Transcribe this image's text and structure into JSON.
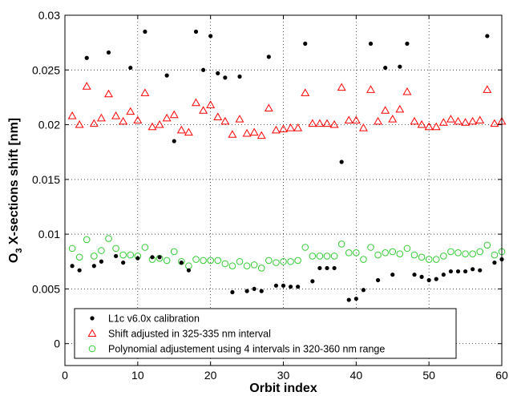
{
  "chart_data": {
    "type": "scatter",
    "xlabel": "Orbit index",
    "ylabel": "O3 X-sections shift [nm]",
    "ylabel_main": "O",
    "ylabel_sub": "3",
    "ylabel_rest": " X-sections shift [nm]",
    "xlim": [
      0,
      60
    ],
    "ylim": [
      -0.002,
      0.03
    ],
    "x_ticks": [
      0,
      10,
      20,
      30,
      40,
      50,
      60
    ],
    "y_ticks": [
      0,
      0.005,
      0.01,
      0.015,
      0.02,
      0.025,
      0.03
    ],
    "x_tick_labels": [
      "0",
      "10",
      "20",
      "30",
      "40",
      "50",
      "60"
    ],
    "y_tick_labels": [
      "0",
      "0.005",
      "0.01",
      "0.015",
      "0.02",
      "0.025",
      "0.03"
    ],
    "grid": true,
    "grid_style": "dotted",
    "legend_position": "bottom-center",
    "series": [
      {
        "name": "L1c v6.0x calibration",
        "marker": "filled-circle",
        "color": "#000000",
        "x": [
          1,
          2,
          3,
          4,
          5,
          6,
          7,
          8,
          9,
          10,
          11,
          12,
          13,
          14,
          15,
          16,
          17,
          18,
          19,
          20,
          21,
          22,
          23,
          24,
          25,
          26,
          27,
          28,
          29,
          30,
          31,
          32,
          33,
          34,
          35,
          36,
          37,
          38,
          39,
          40,
          41,
          42,
          43,
          44,
          45,
          46,
          47,
          48,
          49,
          50,
          51,
          52,
          53,
          54,
          55,
          56,
          57,
          58,
          59,
          60
        ],
        "y": [
          0.0071,
          0.0067,
          0.0261,
          0.0071,
          0.0075,
          0.0266,
          0.008,
          0.0074,
          0.0252,
          0.0078,
          0.0285,
          0.0079,
          0.0079,
          0.0245,
          0.0185,
          0.0074,
          0.0067,
          0.0285,
          0.025,
          0.0281,
          0.0247,
          0.0243,
          0.0047,
          0.0244,
          0.0048,
          0.005,
          0.0048,
          0.0262,
          0.0053,
          0.0053,
          0.0052,
          0.0052,
          0.0274,
          0.0057,
          0.0069,
          0.0069,
          0.0069,
          0.0166,
          0.004,
          0.0041,
          0.0049,
          0.0274,
          0.0058,
          0.0252,
          0.0063,
          0.0253,
          0.0274,
          0.0063,
          0.0061,
          0.0058,
          0.0059,
          0.0063,
          0.0066,
          0.0066,
          0.0066,
          0.0068,
          0.0067,
          0.0281,
          0.0074,
          0.0077
        ]
      },
      {
        "name": "Shift adjusted in 325-335 nm interval",
        "marker": "open-triangle",
        "color": "#ff0000",
        "x": [
          1,
          2,
          3,
          4,
          5,
          6,
          7,
          8,
          9,
          10,
          11,
          12,
          13,
          14,
          15,
          16,
          17,
          18,
          19,
          20,
          21,
          22,
          23,
          24,
          25,
          26,
          27,
          28,
          29,
          30,
          31,
          32,
          33,
          34,
          35,
          36,
          37,
          38,
          39,
          40,
          41,
          42,
          43,
          44,
          45,
          46,
          47,
          48,
          49,
          50,
          51,
          52,
          53,
          54,
          55,
          56,
          57,
          58,
          59,
          60
        ],
        "y": [
          0.0208,
          0.02,
          0.0235,
          0.0201,
          0.0206,
          0.0228,
          0.0208,
          0.0203,
          0.0212,
          0.0204,
          0.0229,
          0.0198,
          0.02,
          0.0206,
          0.0209,
          0.0195,
          0.0193,
          0.022,
          0.0213,
          0.0218,
          0.0207,
          0.0203,
          0.0191,
          0.0205,
          0.0192,
          0.0193,
          0.019,
          0.0215,
          0.0195,
          0.0196,
          0.0197,
          0.0197,
          0.0229,
          0.0201,
          0.0201,
          0.0201,
          0.02,
          0.0234,
          0.0204,
          0.0204,
          0.0197,
          0.0232,
          0.0203,
          0.0213,
          0.0205,
          0.0214,
          0.023,
          0.0203,
          0.02,
          0.0198,
          0.0198,
          0.0202,
          0.0205,
          0.0203,
          0.0202,
          0.0203,
          0.0204,
          0.0232,
          0.0201,
          0.0203
        ]
      },
      {
        "name": "Polynomial adjustement using 4 intervals in 320-360 nm range",
        "marker": "open-circle",
        "color": "#33cc33",
        "x": [
          1,
          2,
          3,
          4,
          5,
          6,
          7,
          8,
          9,
          10,
          11,
          12,
          13,
          14,
          15,
          16,
          17,
          18,
          19,
          20,
          21,
          22,
          23,
          24,
          25,
          26,
          27,
          28,
          29,
          30,
          31,
          32,
          33,
          34,
          35,
          36,
          37,
          38,
          39,
          40,
          41,
          42,
          43,
          44,
          45,
          46,
          47,
          48,
          49,
          50,
          51,
          52,
          53,
          54,
          55,
          56,
          57,
          58,
          59,
          60
        ],
        "y": [
          0.0087,
          0.0079,
          0.0095,
          0.008,
          0.0085,
          0.0096,
          0.0087,
          0.0081,
          0.0081,
          0.008,
          0.0088,
          0.0077,
          0.0078,
          0.0076,
          0.0084,
          0.0075,
          0.0071,
          0.0077,
          0.0076,
          0.0076,
          0.0076,
          0.0073,
          0.0071,
          0.0075,
          0.0071,
          0.0072,
          0.0069,
          0.0076,
          0.0074,
          0.0075,
          0.0075,
          0.0076,
          0.0088,
          0.008,
          0.008,
          0.008,
          0.008,
          0.0091,
          0.0083,
          0.0083,
          0.0077,
          0.0088,
          0.0081,
          0.0083,
          0.0084,
          0.0082,
          0.0087,
          0.0081,
          0.0079,
          0.0077,
          0.0077,
          0.008,
          0.0084,
          0.0083,
          0.0082,
          0.0082,
          0.0084,
          0.009,
          0.0081,
          0.0084
        ]
      }
    ]
  },
  "colors": {
    "axis": "#000000",
    "grid": "#000000",
    "background": "#ffffff"
  }
}
